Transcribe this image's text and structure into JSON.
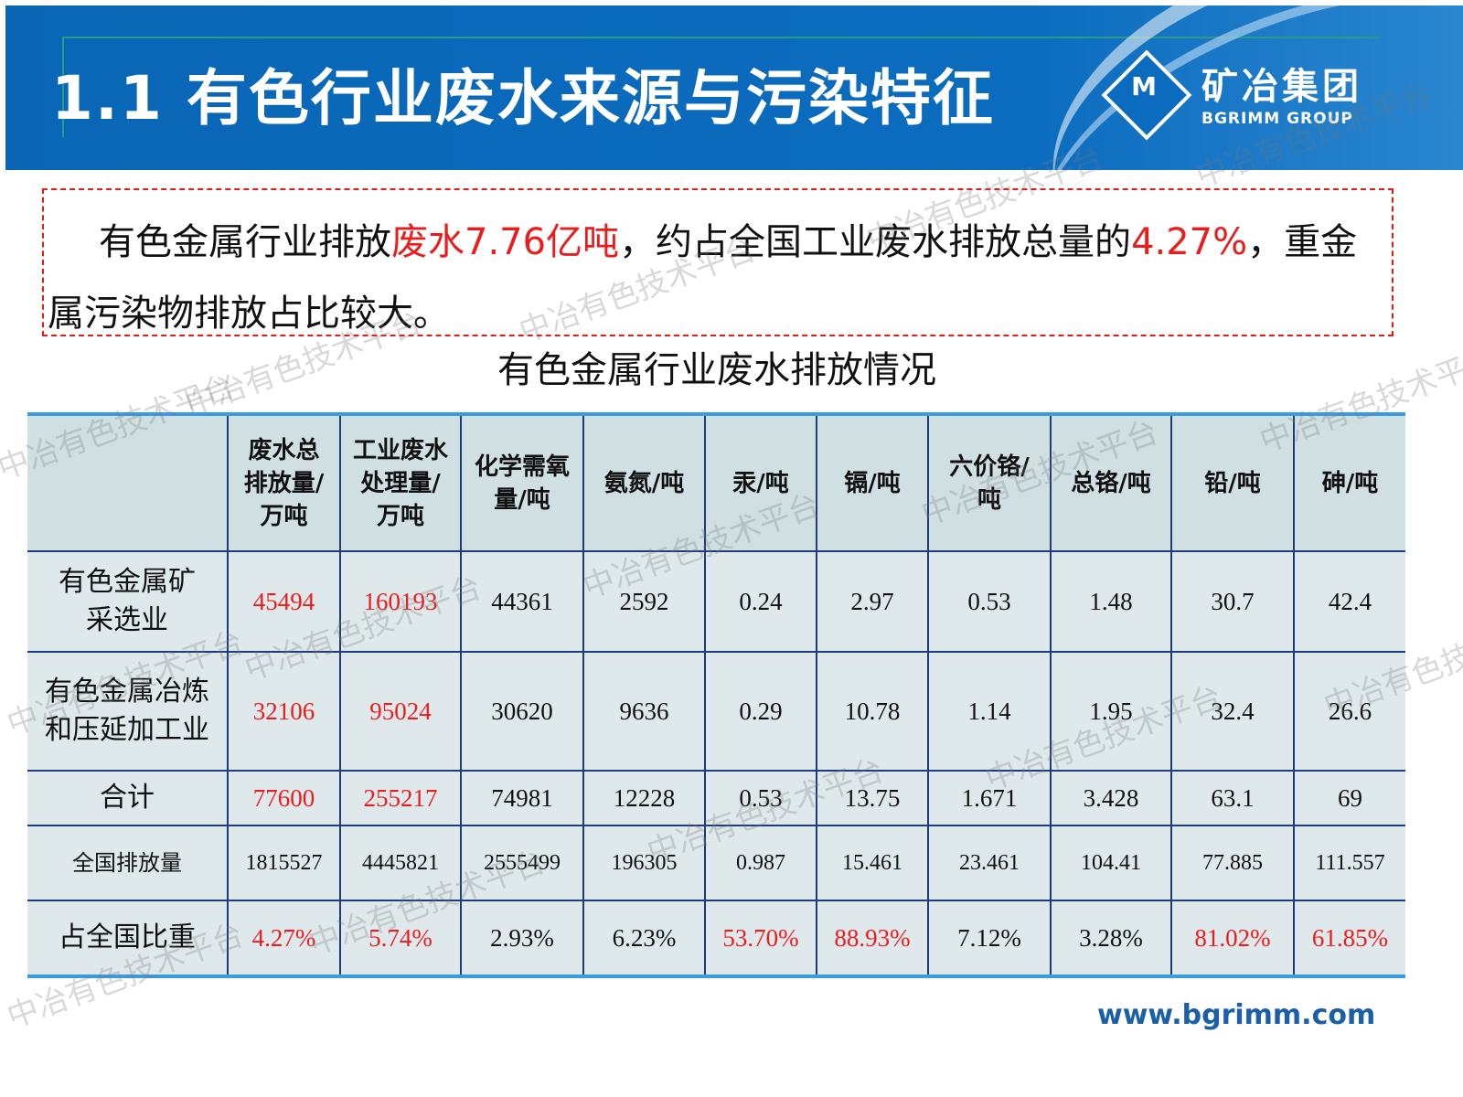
{
  "header": {
    "title": "1.1  有色行业废水来源与污染特征",
    "logo_mark": "M",
    "logo_cn": "矿冶集团",
    "logo_en": "BGRIMM GROUP"
  },
  "callout": {
    "t1": "有色金属行业排放",
    "t2": "废水7.76亿吨",
    "t3": "，约占全国工业废水排放总量的",
    "t4": "4.27%",
    "t5": "，重金属污染物排放占比较大。"
  },
  "table": {
    "caption": "有色金属行业废水排放情况",
    "headers": [
      "",
      "废水总排放量/万吨",
      "工业废水处理量/万吨",
      "化学需氧量/吨",
      "氨氮/吨",
      "汞/吨",
      "镉/吨",
      "六价铬/吨",
      "总铬/吨",
      "铅/吨",
      "砷/吨"
    ],
    "rows": [
      {
        "label": "有色金属矿采选业",
        "cells": [
          "45494",
          "160193",
          "44361",
          "2592",
          "0.24",
          "2.97",
          "0.53",
          "1.48",
          "30.7",
          "42.4"
        ],
        "red": [
          0,
          1
        ]
      },
      {
        "label": "有色金属冶炼和压延加工业",
        "cells": [
          "32106",
          "95024",
          "30620",
          "9636",
          "0.29",
          "10.78",
          "1.14",
          "1.95",
          "32.4",
          "26.6"
        ],
        "red": [
          0,
          1
        ]
      },
      {
        "label": "合计",
        "cells": [
          "77600",
          "255217",
          "74981",
          "12228",
          "0.53",
          "13.75",
          "1.671",
          "3.428",
          "63.1",
          "69"
        ],
        "red": [
          0,
          1
        ]
      },
      {
        "label": "全国排放量",
        "cells": [
          "1815527",
          "4445821",
          "2555499",
          "196305",
          "0.987",
          "15.461",
          "23.461",
          "104.41",
          "77.885",
          "111.557"
        ],
        "red": []
      },
      {
        "label": "占全国比重",
        "cells": [
          "4.27%",
          "5.74%",
          "2.93%",
          "6.23%",
          "53.70%",
          "88.93%",
          "7.12%",
          "3.28%",
          "81.02%",
          "61.85%"
        ],
        "red": [
          0,
          1,
          4,
          5,
          8,
          9
        ]
      }
    ]
  },
  "footer": {
    "url": "www.bgrimm.com"
  },
  "watermark": "中冶有色技术平台",
  "colors": {
    "header_blue": "#0b6cbf",
    "highlight_red": "#ea1c1c",
    "table_bg": "#dfe9ec"
  }
}
